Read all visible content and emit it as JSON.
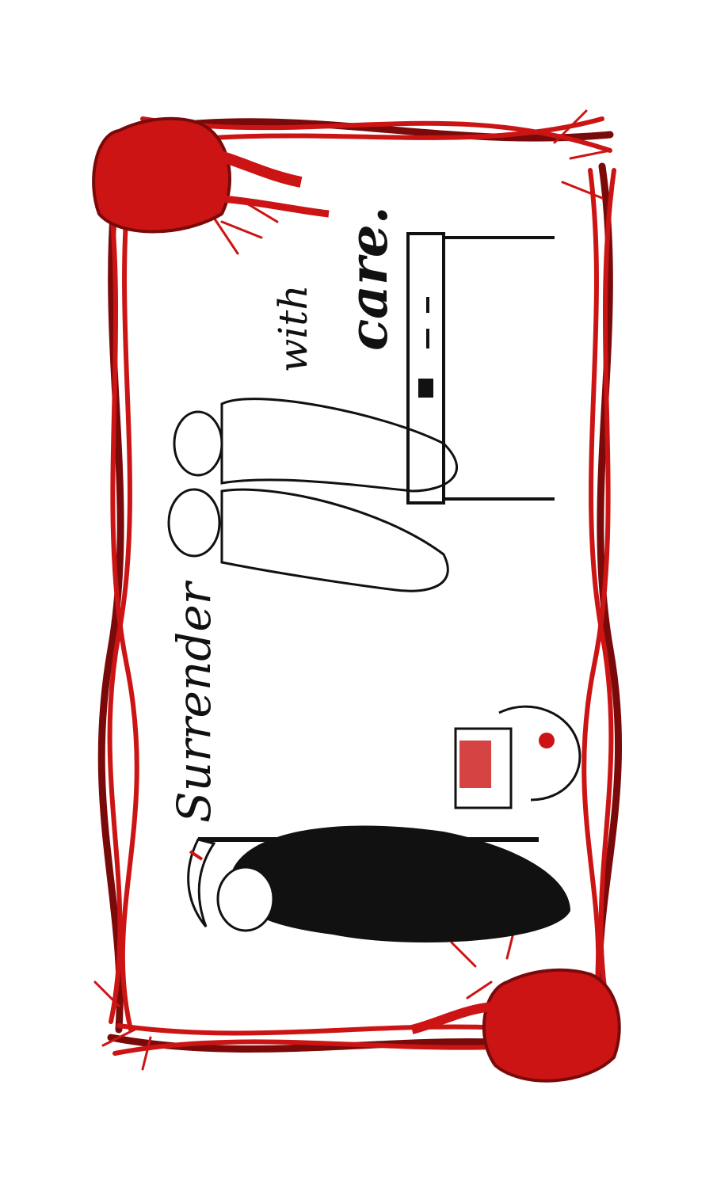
{
  "caption": {
    "word_1": "Surrender",
    "word_2": "with",
    "word_3": "care."
  },
  "colors": {
    "vein_red": "#cc1414",
    "vein_dark": "#7a0a0a",
    "ink": "#111111",
    "paper": "#ffffff"
  },
  "icons": {
    "top_heart": "anatomical-heart-icon",
    "bottom_heart": "anatomical-heart-icon",
    "reaper": "grim-reaper-icon",
    "scythe": "scythe-icon"
  }
}
